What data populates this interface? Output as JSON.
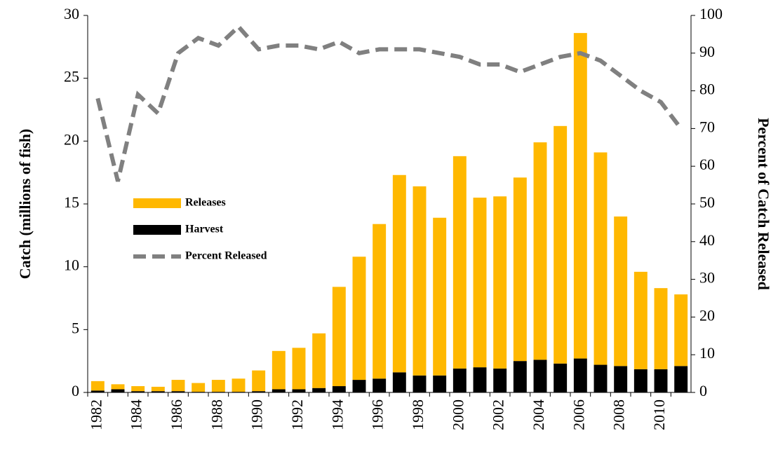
{
  "chart_data": {
    "type": "bar-line",
    "y_label": "Catch (millions of fish)",
    "y2_label": "Percent of Catch Released",
    "categories": [
      "1982",
      null,
      "1984",
      null,
      "1986",
      null,
      "1988",
      null,
      "1990",
      null,
      "1992",
      null,
      "1994",
      null,
      "1996",
      null,
      "1998",
      null,
      "2000",
      null,
      "2002",
      null,
      "2004",
      null,
      "2006",
      null,
      "2008",
      null,
      "2010",
      null
    ],
    "series": [
      {
        "name": "Releases",
        "type": "bar",
        "color": "#ffb800",
        "values": [
          0.75,
          0.4,
          0.4,
          0.35,
          0.9,
          0.7,
          0.95,
          1.05,
          1.65,
          3.05,
          3.3,
          4.35,
          7.9,
          9.8,
          12.3,
          15.7,
          15.05,
          12.55,
          16.9,
          13.5,
          13.7,
          14.6,
          17.3,
          18.9,
          25.9,
          16.9,
          11.9,
          7.75,
          6.45,
          5.7
        ]
      },
      {
        "name": "Harvest",
        "type": "bar",
        "color": "#000000",
        "values": [
          0.15,
          0.25,
          0.1,
          0.1,
          0.1,
          0.05,
          0.05,
          0.05,
          0.1,
          0.25,
          0.25,
          0.35,
          0.5,
          1.0,
          1.1,
          1.6,
          1.35,
          1.35,
          1.9,
          2.0,
          1.9,
          2.5,
          2.6,
          2.3,
          2.7,
          2.2,
          2.1,
          1.85,
          1.85,
          2.1
        ]
      },
      {
        "name": "Percent Released",
        "type": "line",
        "axis": "y2",
        "color": "#808080",
        "dashed": true,
        "values": [
          78,
          56,
          79,
          74,
          90,
          94,
          92,
          97,
          91,
          92,
          92,
          91,
          93,
          90,
          91,
          91,
          91,
          90,
          89,
          87,
          87,
          85,
          87,
          89,
          90,
          88,
          84,
          80,
          77,
          70
        ]
      }
    ],
    "ylim": [
      0,
      30
    ],
    "yticks": [
      0,
      5,
      10,
      15,
      20,
      25,
      30
    ],
    "y2lim": [
      0,
      100
    ],
    "y2ticks": [
      0,
      10,
      20,
      30,
      40,
      50,
      60,
      70,
      80,
      90,
      100
    ],
    "legend": "middle-left"
  }
}
